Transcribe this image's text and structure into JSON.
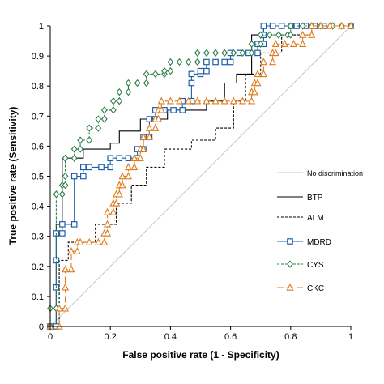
{
  "chart_data": {
    "type": "line",
    "xlabel": "False positive rate (1 - Specificity)",
    "ylabel": "True positive rate (Sensitivity)",
    "xlim": [
      0,
      1
    ],
    "ylim": [
      0,
      1
    ],
    "x_ticks": [
      "0",
      "0.2",
      "0.4",
      "0.6",
      "0.8",
      "1"
    ],
    "y_ticks": [
      "0",
      "0.1",
      "0.2",
      "0.3",
      "0.4",
      "0.5",
      "0.6",
      "0.7",
      "0.8",
      "0.9",
      "1"
    ],
    "grid": false,
    "legend_position": "right",
    "series": [
      {
        "name": "No discrimination",
        "color": "#c8c8c8",
        "dash": "",
        "marker": "none",
        "points": [
          [
            0,
            0
          ],
          [
            1,
            1
          ]
        ]
      },
      {
        "name": "BTP",
        "color": "#000000",
        "dash": "",
        "marker": "none",
        "points": [
          [
            0,
            0
          ],
          [
            0.02,
            0
          ],
          [
            0.02,
            0.34
          ],
          [
            0.04,
            0.34
          ],
          [
            0.04,
            0.56
          ],
          [
            0.11,
            0.56
          ],
          [
            0.11,
            0.59
          ],
          [
            0.2,
            0.59
          ],
          [
            0.2,
            0.61
          ],
          [
            0.23,
            0.61
          ],
          [
            0.23,
            0.65
          ],
          [
            0.3,
            0.65
          ],
          [
            0.3,
            0.69
          ],
          [
            0.39,
            0.69
          ],
          [
            0.39,
            0.72
          ],
          [
            0.52,
            0.72
          ],
          [
            0.52,
            0.75
          ],
          [
            0.58,
            0.75
          ],
          [
            0.58,
            0.81
          ],
          [
            0.62,
            0.81
          ],
          [
            0.62,
            0.84
          ],
          [
            0.67,
            0.84
          ],
          [
            0.67,
            0.97
          ],
          [
            0.71,
            0.97
          ],
          [
            0.71,
            1
          ],
          [
            1,
            1
          ]
        ]
      },
      {
        "name": "ALM",
        "color": "#000000",
        "dash": "3,2",
        "marker": "none",
        "points": [
          [
            0,
            0
          ],
          [
            0.03,
            0
          ],
          [
            0.03,
            0.22
          ],
          [
            0.06,
            0.22
          ],
          [
            0.06,
            0.28
          ],
          [
            0.15,
            0.28
          ],
          [
            0.15,
            0.34
          ],
          [
            0.22,
            0.34
          ],
          [
            0.22,
            0.41
          ],
          [
            0.27,
            0.41
          ],
          [
            0.27,
            0.47
          ],
          [
            0.32,
            0.47
          ],
          [
            0.32,
            0.53
          ],
          [
            0.38,
            0.53
          ],
          [
            0.38,
            0.59
          ],
          [
            0.47,
            0.59
          ],
          [
            0.47,
            0.62
          ],
          [
            0.55,
            0.62
          ],
          [
            0.55,
            0.66
          ],
          [
            0.61,
            0.66
          ],
          [
            0.61,
            0.75
          ],
          [
            0.65,
            0.75
          ],
          [
            0.65,
            0.84
          ],
          [
            0.7,
            0.84
          ],
          [
            0.7,
            0.91
          ],
          [
            0.77,
            0.91
          ],
          [
            0.77,
            0.97
          ],
          [
            0.87,
            0.97
          ],
          [
            0.87,
            1
          ],
          [
            1,
            1
          ]
        ]
      },
      {
        "name": "MDRD",
        "color": "#1f5fa8",
        "dash": "",
        "marker": "square",
        "points": [
          [
            0,
            0
          ],
          [
            0.02,
            0
          ],
          [
            0.02,
            0.13
          ],
          [
            0.02,
            0.22
          ],
          [
            0.02,
            0.31
          ],
          [
            0.04,
            0.31
          ],
          [
            0.04,
            0.34
          ],
          [
            0.08,
            0.34
          ],
          [
            0.08,
            0.5
          ],
          [
            0.11,
            0.5
          ],
          [
            0.11,
            0.53
          ],
          [
            0.13,
            0.53
          ],
          [
            0.17,
            0.53
          ],
          [
            0.2,
            0.53
          ],
          [
            0.2,
            0.56
          ],
          [
            0.23,
            0.56
          ],
          [
            0.26,
            0.56
          ],
          [
            0.29,
            0.56
          ],
          [
            0.29,
            0.59
          ],
          [
            0.31,
            0.59
          ],
          [
            0.31,
            0.63
          ],
          [
            0.33,
            0.63
          ],
          [
            0.33,
            0.69
          ],
          [
            0.35,
            0.69
          ],
          [
            0.35,
            0.72
          ],
          [
            0.38,
            0.72
          ],
          [
            0.41,
            0.72
          ],
          [
            0.44,
            0.72
          ],
          [
            0.44,
            0.75
          ],
          [
            0.47,
            0.75
          ],
          [
            0.47,
            0.81
          ],
          [
            0.47,
            0.84
          ],
          [
            0.5,
            0.84
          ],
          [
            0.5,
            0.85
          ],
          [
            0.52,
            0.85
          ],
          [
            0.52,
            0.88
          ],
          [
            0.55,
            0.88
          ],
          [
            0.58,
            0.88
          ],
          [
            0.6,
            0.88
          ],
          [
            0.6,
            0.91
          ],
          [
            0.63,
            0.91
          ],
          [
            0.66,
            0.91
          ],
          [
            0.69,
            0.91
          ],
          [
            0.69,
            0.94
          ],
          [
            0.71,
            0.94
          ],
          [
            0.71,
            0.97
          ],
          [
            0.71,
            1
          ],
          [
            0.74,
            1
          ],
          [
            0.77,
            1
          ],
          [
            0.8,
            1
          ],
          [
            0.82,
            1
          ],
          [
            0.85,
            1
          ],
          [
            0.88,
            1
          ],
          [
            0.91,
            1
          ],
          [
            1,
            1
          ]
        ]
      },
      {
        "name": "CYS",
        "color": "#2e7d46",
        "dash": "3,2",
        "marker": "diamond",
        "points": [
          [
            0,
            0
          ],
          [
            0,
            0.06
          ],
          [
            0.02,
            0.06
          ],
          [
            0.02,
            0.44
          ],
          [
            0.04,
            0.44
          ],
          [
            0.04,
            0.47
          ],
          [
            0.05,
            0.47
          ],
          [
            0.05,
            0.5
          ],
          [
            0.05,
            0.56
          ],
          [
            0.08,
            0.56
          ],
          [
            0.08,
            0.59
          ],
          [
            0.1,
            0.59
          ],
          [
            0.1,
            0.62
          ],
          [
            0.13,
            0.62
          ],
          [
            0.13,
            0.66
          ],
          [
            0.16,
            0.66
          ],
          [
            0.16,
            0.69
          ],
          [
            0.18,
            0.69
          ],
          [
            0.18,
            0.72
          ],
          [
            0.21,
            0.72
          ],
          [
            0.21,
            0.75
          ],
          [
            0.23,
            0.75
          ],
          [
            0.23,
            0.78
          ],
          [
            0.26,
            0.78
          ],
          [
            0.26,
            0.81
          ],
          [
            0.29,
            0.81
          ],
          [
            0.32,
            0.81
          ],
          [
            0.32,
            0.84
          ],
          [
            0.35,
            0.84
          ],
          [
            0.38,
            0.84
          ],
          [
            0.38,
            0.85
          ],
          [
            0.4,
            0.85
          ],
          [
            0.4,
            0.88
          ],
          [
            0.43,
            0.88
          ],
          [
            0.46,
            0.88
          ],
          [
            0.49,
            0.88
          ],
          [
            0.49,
            0.91
          ],
          [
            0.52,
            0.91
          ],
          [
            0.55,
            0.91
          ],
          [
            0.58,
            0.91
          ],
          [
            0.61,
            0.91
          ],
          [
            0.64,
            0.91
          ],
          [
            0.67,
            0.91
          ],
          [
            0.67,
            0.94
          ],
          [
            0.7,
            0.94
          ],
          [
            0.7,
            0.97
          ],
          [
            0.73,
            0.97
          ],
          [
            0.76,
            0.97
          ],
          [
            0.79,
            0.97
          ],
          [
            0.8,
            0.97
          ],
          [
            0.8,
            1
          ],
          [
            0.84,
            1
          ],
          [
            0.87,
            1
          ],
          [
            0.9,
            1
          ],
          [
            0.94,
            1
          ],
          [
            0.97,
            1
          ],
          [
            1,
            1
          ]
        ]
      },
      {
        "name": "CKC",
        "color": "#e07b1a",
        "dash": "8,4",
        "marker": "triangle",
        "points": [
          [
            0,
            0
          ],
          [
            0.03,
            0
          ],
          [
            0.03,
            0.06
          ],
          [
            0.05,
            0.06
          ],
          [
            0.05,
            0.13
          ],
          [
            0.05,
            0.19
          ],
          [
            0.07,
            0.19
          ],
          [
            0.07,
            0.25
          ],
          [
            0.09,
            0.25
          ],
          [
            0.09,
            0.28
          ],
          [
            0.1,
            0.28
          ],
          [
            0.13,
            0.28
          ],
          [
            0.16,
            0.28
          ],
          [
            0.18,
            0.28
          ],
          [
            0.18,
            0.31
          ],
          [
            0.19,
            0.31
          ],
          [
            0.19,
            0.34
          ],
          [
            0.19,
            0.38
          ],
          [
            0.21,
            0.38
          ],
          [
            0.21,
            0.41
          ],
          [
            0.22,
            0.41
          ],
          [
            0.22,
            0.44
          ],
          [
            0.23,
            0.44
          ],
          [
            0.23,
            0.47
          ],
          [
            0.24,
            0.47
          ],
          [
            0.24,
            0.5
          ],
          [
            0.26,
            0.5
          ],
          [
            0.26,
            0.53
          ],
          [
            0.28,
            0.53
          ],
          [
            0.28,
            0.56
          ],
          [
            0.3,
            0.56
          ],
          [
            0.3,
            0.59
          ],
          [
            0.31,
            0.59
          ],
          [
            0.31,
            0.63
          ],
          [
            0.33,
            0.63
          ],
          [
            0.33,
            0.66
          ],
          [
            0.35,
            0.66
          ],
          [
            0.35,
            0.69
          ],
          [
            0.36,
            0.69
          ],
          [
            0.36,
            0.72
          ],
          [
            0.37,
            0.72
          ],
          [
            0.37,
            0.75
          ],
          [
            0.4,
            0.75
          ],
          [
            0.43,
            0.75
          ],
          [
            0.46,
            0.75
          ],
          [
            0.49,
            0.75
          ],
          [
            0.52,
            0.75
          ],
          [
            0.55,
            0.75
          ],
          [
            0.58,
            0.75
          ],
          [
            0.61,
            0.75
          ],
          [
            0.64,
            0.75
          ],
          [
            0.67,
            0.75
          ],
          [
            0.67,
            0.78
          ],
          [
            0.68,
            0.78
          ],
          [
            0.68,
            0.81
          ],
          [
            0.69,
            0.81
          ],
          [
            0.69,
            0.84
          ],
          [
            0.71,
            0.84
          ],
          [
            0.71,
            0.88
          ],
          [
            0.74,
            0.88
          ],
          [
            0.74,
            0.91
          ],
          [
            0.75,
            0.91
          ],
          [
            0.75,
            0.94
          ],
          [
            0.78,
            0.94
          ],
          [
            0.81,
            0.94
          ],
          [
            0.84,
            0.94
          ],
          [
            0.84,
            0.97
          ],
          [
            0.87,
            0.97
          ],
          [
            0.87,
            1
          ],
          [
            0.9,
            1
          ],
          [
            0.93,
            1
          ],
          [
            0.97,
            1
          ],
          [
            1,
            1
          ]
        ]
      }
    ]
  }
}
